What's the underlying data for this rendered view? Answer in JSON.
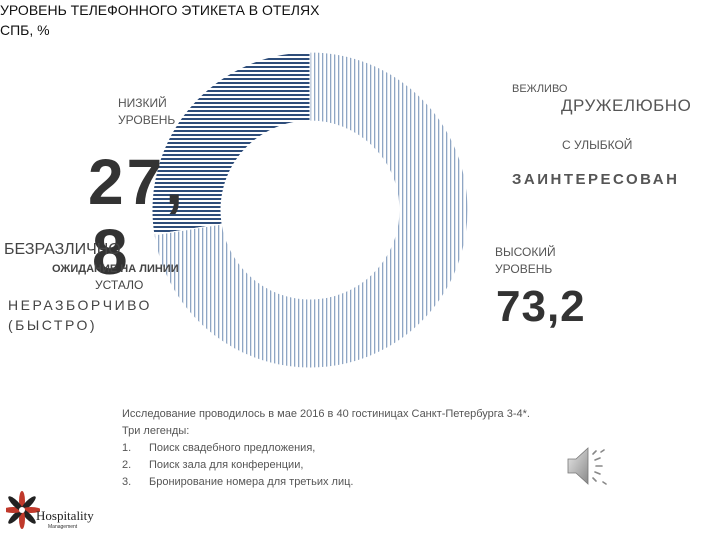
{
  "title_lines": [
    "УРОВЕНЬ ТЕЛЕФОННОГО ЭТИКЕТА В ОТЕЛЯХ",
    "СПБ, %"
  ],
  "chart_data": {
    "type": "pie",
    "donut": true,
    "title": "УРОВЕНЬ ТЕЛЕФОННОГО ЭТИКЕТА В ОТЕЛЯХ СПБ, %",
    "slices": [
      {
        "label": "НИЗКИЙ УРОВЕНЬ",
        "label_lines": [
          "НИЗКИЙ",
          "УРОВЕНЬ"
        ],
        "value": 27.8,
        "value_parts": [
          "27,",
          "8"
        ],
        "color": "#2e4d7a",
        "pattern": "horizontal-stripes"
      },
      {
        "label": "ВЫСОКИЙ УРОВЕНЬ",
        "label_lines": [
          "ВЫСОКИЙ",
          "УРОВЕНЬ"
        ],
        "value": 73.2,
        "value_text": "73,2",
        "color": "#8fa6c4",
        "pattern": "vertical-stripes"
      }
    ]
  },
  "keywords": {
    "polite": "ВЕЖЛИВО",
    "friendly": "ДРУЖЕЛЮБНО",
    "smile": "С УЛЫБКОЙ",
    "interested": "ЗАИНТЕРЕСОВАН",
    "indifferent": "БЕЗРАЗЛИЧНО",
    "waiting": "ОЖИДАНИЕ НА ЛИНИИ",
    "tired": "УСТАЛО",
    "illegible_lines": [
      "НЕРАЗБОРЧИВО",
      "(БЫСТРО)"
    ]
  },
  "note": {
    "intro": "Исследование проводилось в мае 2016 в 40 гостиницах Санкт-Петербурга 3-4*.",
    "legends_title": "Три легенды:",
    "items": [
      {
        "num": "1.",
        "text": "Поиск свадебного предложения,"
      },
      {
        "num": "2.",
        "text": "Поиск зала для конференции,"
      },
      {
        "num": "3.",
        "text": "Бронирование номера для третьих лиц."
      }
    ]
  },
  "logo": {
    "name": "Hospitality",
    "sub": "Management"
  },
  "icons": {
    "speaker": "speaker-icon",
    "logo": "hospitality-flower-logo-icon"
  }
}
